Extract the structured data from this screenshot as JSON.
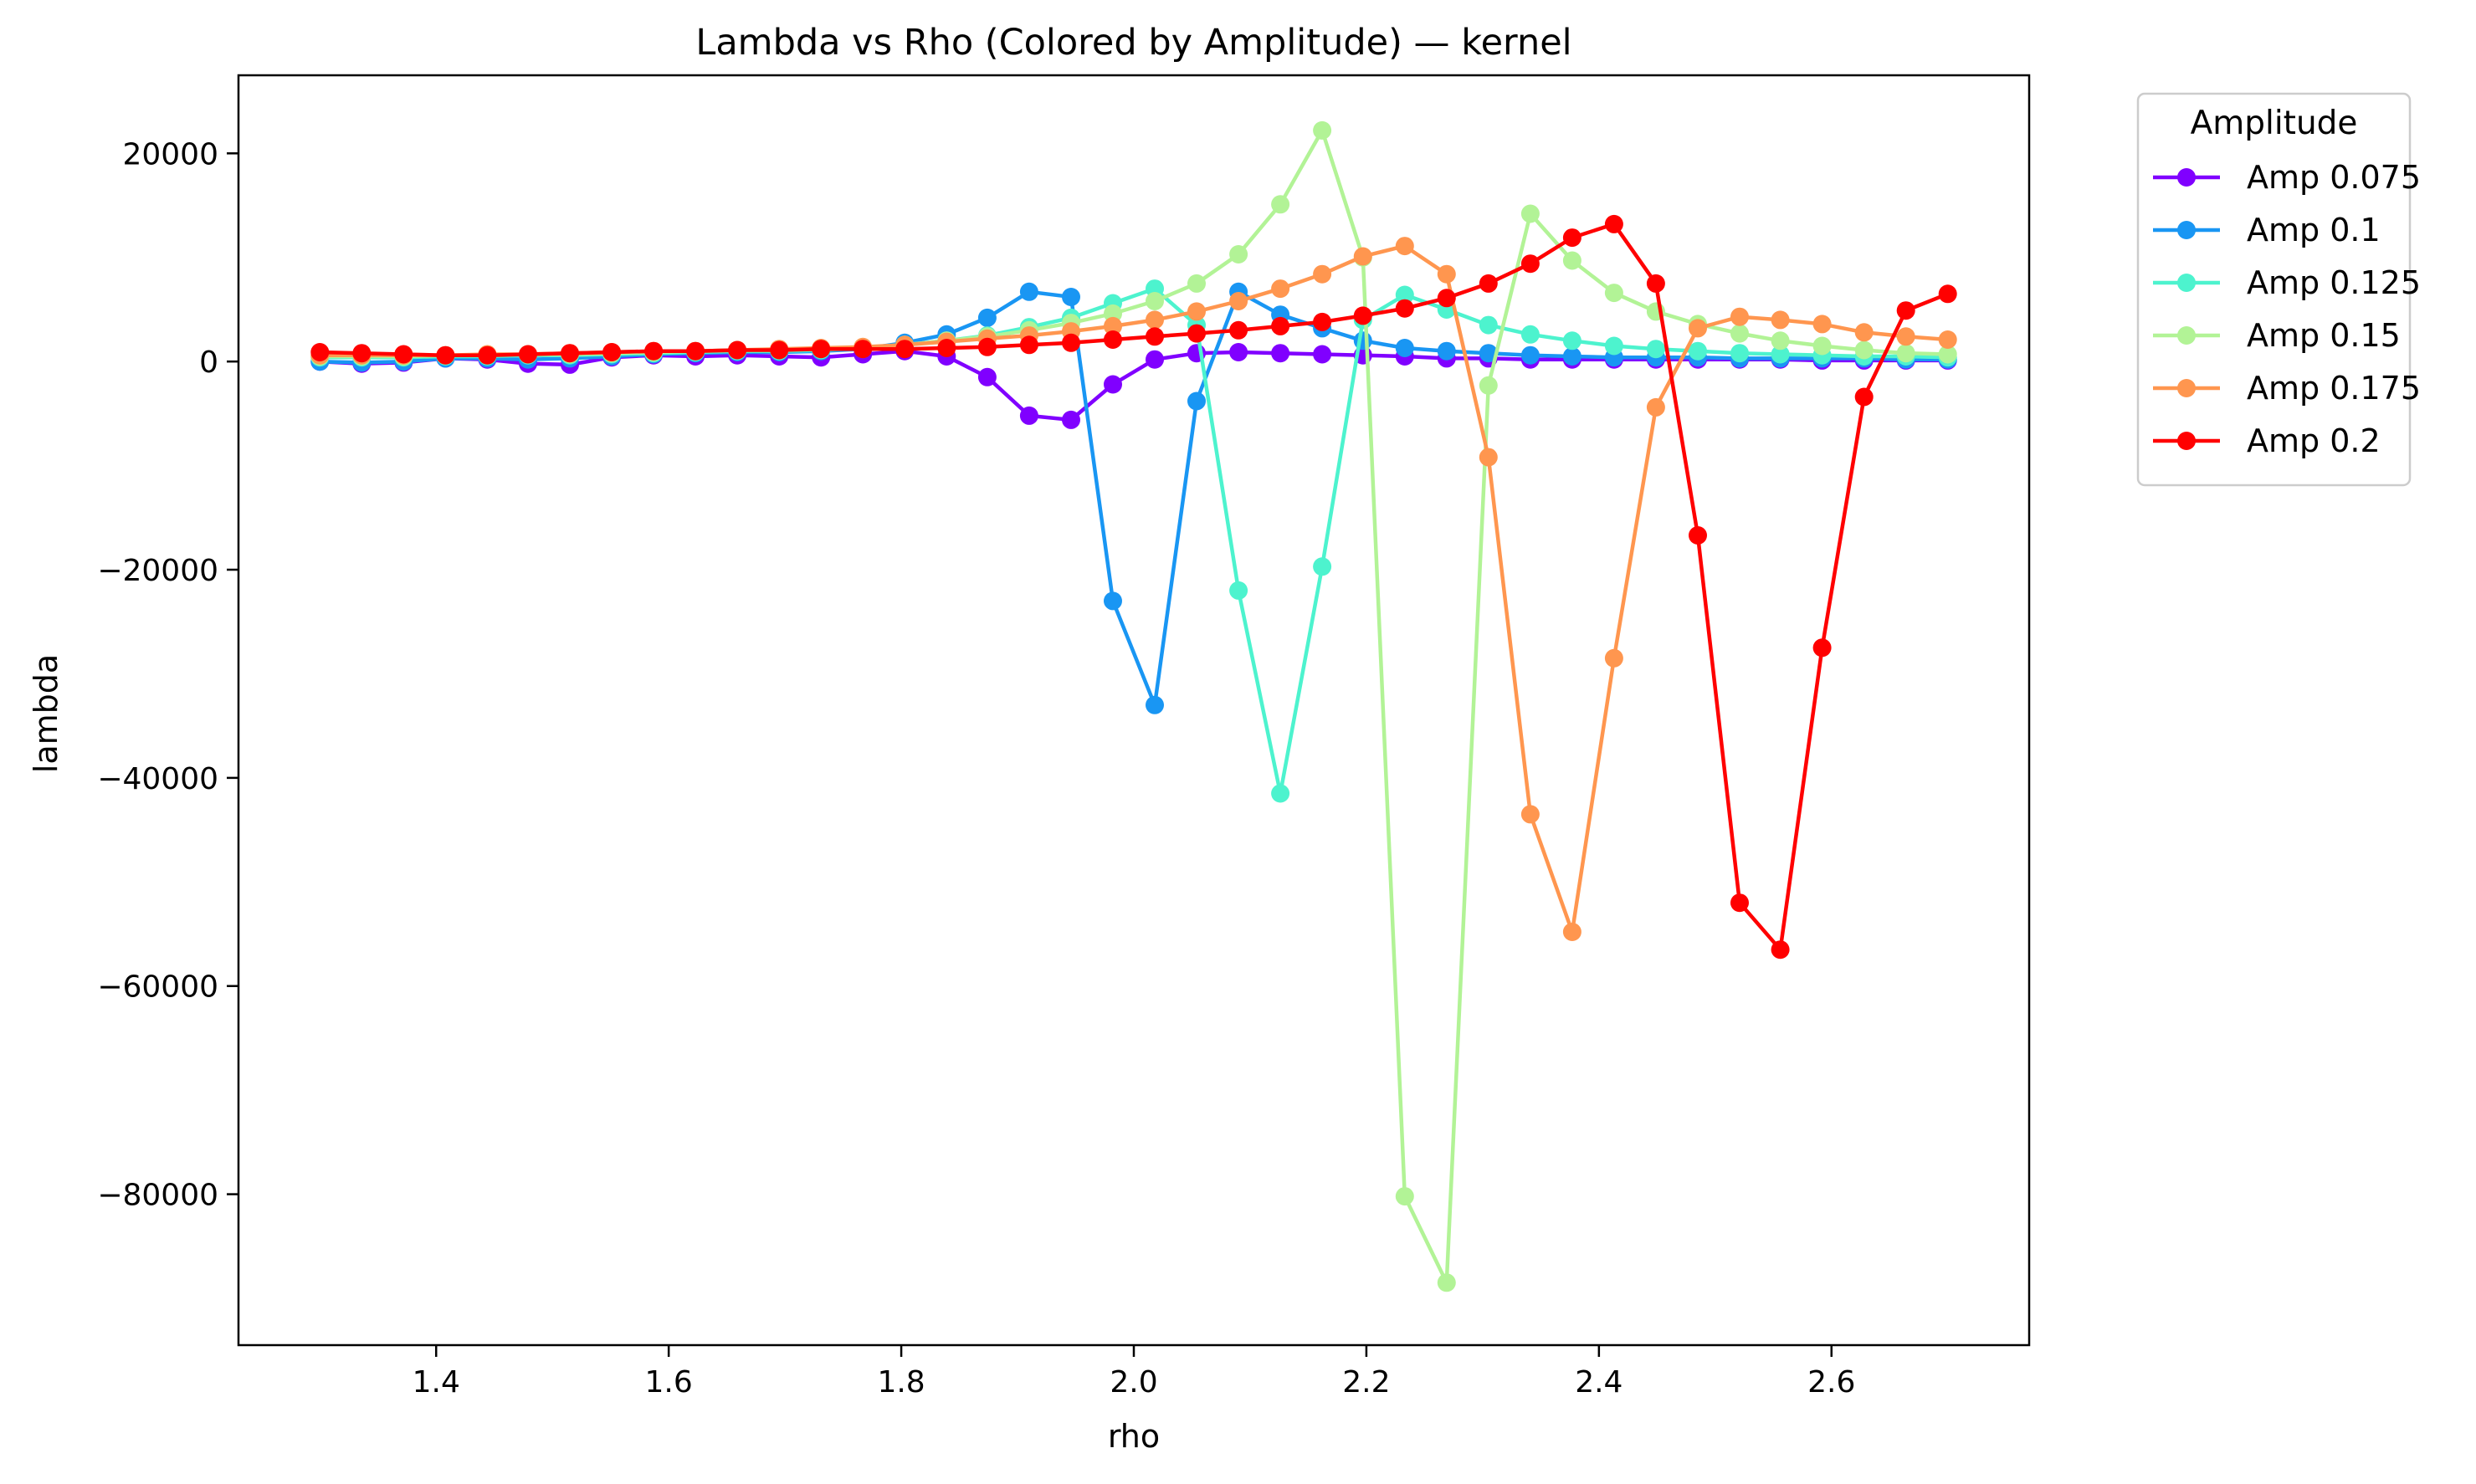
{
  "chart_data": {
    "type": "line",
    "title": "Lambda vs Rho (Colored by Amplitude) — kernel",
    "xlabel": "rho",
    "ylabel": "lambda",
    "xlim": [
      1.23,
      2.77
    ],
    "ylim": [
      -94500,
      27500
    ],
    "xticks": [
      1.4,
      1.6,
      1.8,
      2.0,
      2.2,
      2.4,
      2.6
    ],
    "xtick_labels": [
      "1.4",
      "1.6",
      "1.8",
      "2.0",
      "2.2",
      "2.4",
      "2.6"
    ],
    "yticks": [
      20000,
      0,
      -20000,
      -40000,
      -60000,
      -80000
    ],
    "ytick_labels": [
      "20000",
      "0",
      "−20000",
      "−40000",
      "−60000",
      "−80000"
    ],
    "grid": false,
    "legend": {
      "title": "Amplitude",
      "position": "outside-right-top"
    },
    "x": [
      1.3,
      1.336,
      1.372,
      1.408,
      1.444,
      1.479,
      1.515,
      1.551,
      1.587,
      1.623,
      1.659,
      1.695,
      1.731,
      1.767,
      1.803,
      1.839,
      1.874,
      1.91,
      1.946,
      1.982,
      2.018,
      2.054,
      2.09,
      2.126,
      2.162,
      2.197,
      2.233,
      2.269,
      2.305,
      2.341,
      2.377,
      2.413,
      2.449,
      2.485,
      2.521,
      2.556,
      2.592,
      2.628,
      2.664,
      2.7
    ],
    "series": [
      {
        "name": "Amp 0.075",
        "color": "#8000ff",
        "values": [
          0,
          -200,
          -100,
          300,
          200,
          -200,
          -300,
          400,
          600,
          500,
          600,
          500,
          400,
          700,
          1000,
          500,
          -1500,
          -5200,
          -5600,
          -2200,
          200,
          800,
          900,
          800,
          700,
          600,
          500,
          300,
          300,
          200,
          200,
          200,
          200,
          200,
          200,
          200,
          100,
          100,
          100,
          100
        ]
      },
      {
        "name": "Amp 0.1",
        "color": "#1996f3",
        "values": [
          0,
          -100,
          0,
          300,
          300,
          200,
          300,
          500,
          700,
          800,
          900,
          900,
          1000,
          1200,
          1800,
          2600,
          4200,
          6700,
          6200,
          -23000,
          -33000,
          -3800,
          6700,
          4500,
          3200,
          2000,
          1300,
          1000,
          800,
          600,
          500,
          400,
          400,
          400,
          300,
          300,
          300,
          300,
          200,
          200
        ]
      },
      {
        "name": "Amp 0.125",
        "color": "#4df3ce",
        "values": [
          400,
          400,
          400,
          500,
          500,
          600,
          600,
          700,
          800,
          900,
          1000,
          1000,
          1100,
          1300,
          1600,
          2000,
          2500,
          3300,
          4200,
          5600,
          7000,
          3500,
          -22000,
          -41500,
          -19700,
          4000,
          6400,
          5000,
          3500,
          2600,
          2000,
          1500,
          1200,
          1000,
          800,
          700,
          600,
          500,
          500,
          400
        ]
      },
      {
        "name": "Amp 0.15",
        "color": "#b2f396",
        "values": [
          500,
          500,
          500,
          600,
          600,
          700,
          700,
          800,
          900,
          1000,
          1100,
          1100,
          1200,
          1300,
          1600,
          2000,
          2400,
          3000,
          3700,
          4600,
          5800,
          7500,
          10300,
          15100,
          22200,
          10000,
          -80200,
          -88500,
          -2300,
          14200,
          9700,
          6600,
          4800,
          3600,
          2700,
          2000,
          1500,
          1100,
          800,
          700
        ]
      },
      {
        "name": "Amp 0.175",
        "color": "#ff964f",
        "values": [
          600,
          600,
          600,
          600,
          700,
          700,
          800,
          900,
          1000,
          1000,
          1100,
          1200,
          1300,
          1400,
          1600,
          1900,
          2200,
          2500,
          2900,
          3400,
          4000,
          4800,
          5800,
          7000,
          8400,
          10100,
          11100,
          8400,
          -9200,
          -43500,
          -54800,
          -28500,
          -4400,
          3200,
          4300,
          4000,
          3600,
          2800,
          2400,
          2100
        ]
      },
      {
        "name": "Amp 0.2",
        "color": "#ff0000",
        "values": [
          900,
          800,
          700,
          600,
          600,
          700,
          800,
          900,
          1000,
          1000,
          1100,
          1100,
          1200,
          1200,
          1200,
          1300,
          1400,
          1600,
          1800,
          2100,
          2400,
          2700,
          3000,
          3400,
          3800,
          4400,
          5100,
          6100,
          7500,
          9400,
          11900,
          13200,
          7500,
          -16700,
          -52000,
          -56500,
          -27500,
          -3400,
          4900,
          6500
        ]
      }
    ]
  }
}
